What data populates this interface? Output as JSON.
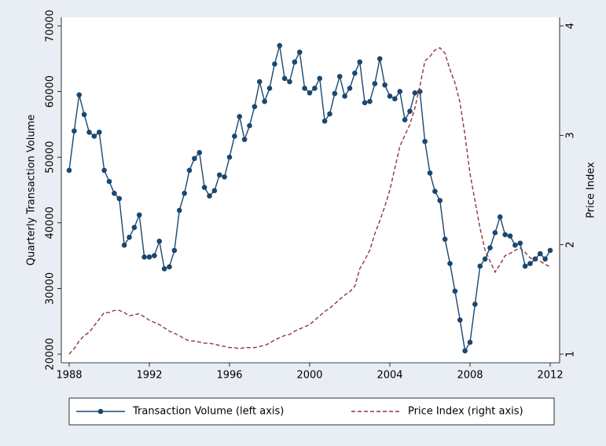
{
  "chart_data": {
    "type": "line",
    "x": [
      1988,
      1988.25,
      1988.5,
      1988.75,
      1989,
      1989.25,
      1989.5,
      1989.75,
      1990,
      1990.25,
      1990.5,
      1990.75,
      1991,
      1991.25,
      1991.5,
      1991.75,
      1992,
      1992.25,
      1992.5,
      1992.75,
      1993,
      1993.25,
      1993.5,
      1993.75,
      1994,
      1994.25,
      1994.5,
      1994.75,
      1995,
      1995.25,
      1995.5,
      1995.75,
      1996,
      1996.25,
      1996.5,
      1996.75,
      1997,
      1997.25,
      1997.5,
      1997.75,
      1998,
      1998.25,
      1998.5,
      1998.75,
      1999,
      1999.25,
      1999.5,
      1999.75,
      2000,
      2000.25,
      2000.5,
      2000.75,
      2001,
      2001.25,
      2001.5,
      2001.75,
      2002,
      2002.25,
      2002.5,
      2002.75,
      2003,
      2003.25,
      2003.5,
      2003.75,
      2004,
      2004.25,
      2004.5,
      2004.75,
      2005,
      2005.25,
      2005.5,
      2005.75,
      2006,
      2006.25,
      2006.5,
      2006.75,
      2007,
      2007.25,
      2007.5,
      2007.75,
      2008,
      2008.25,
      2008.5,
      2008.75,
      2009,
      2009.25,
      2009.5,
      2009.75,
      2010,
      2010.25,
      2010.5,
      2010.75,
      2011,
      2011.25,
      2011.5,
      2011.75,
      2012
    ],
    "series": [
      {
        "name": "Transaction Volume (left axis)",
        "color": "#1a476f",
        "style": "solid",
        "markers": true,
        "values": [
          48000,
          54000,
          59500,
          56500,
          53800,
          53200,
          53800,
          48000,
          46300,
          44500,
          43700,
          36600,
          37800,
          39300,
          41200,
          34800,
          34800,
          35000,
          37200,
          33000,
          33300,
          35800,
          41900,
          44500,
          48000,
          49800,
          50700,
          45400,
          44100,
          44900,
          47300,
          47000,
          50000,
          53200,
          56200,
          52700,
          54800,
          57700,
          61500,
          58500,
          60500,
          64200,
          67000,
          62000,
          61500,
          64500,
          66000,
          60500,
          59800,
          60500,
          62000,
          55500,
          56600,
          59700,
          62300,
          59300,
          60500,
          62800,
          64500,
          58300,
          58500,
          61200,
          65000,
          61000,
          59300,
          58900,
          60000,
          55700,
          57000,
          59800,
          60000,
          52400,
          47600,
          44800,
          43400,
          37500,
          33800,
          29600,
          25200,
          20500,
          21800,
          27600,
          33400,
          34500,
          36200,
          38500,
          40900,
          38200,
          38000,
          36600,
          36900,
          33400,
          33800,
          34500,
          35300,
          34500,
          35800
        ]
      },
      {
        "name": "Price Index (right axis)",
        "color": "#90353b",
        "style": "dashed",
        "markers": false,
        "axis": "y2",
        "values": [
          1.0,
          1.05,
          1.12,
          1.17,
          1.2,
          1.26,
          1.32,
          1.38,
          1.38,
          1.4,
          1.4,
          1.38,
          1.35,
          1.36,
          1.37,
          1.34,
          1.31,
          1.29,
          1.27,
          1.24,
          1.21,
          1.19,
          1.17,
          1.14,
          1.12,
          1.12,
          1.11,
          1.1,
          1.1,
          1.09,
          1.08,
          1.07,
          1.06,
          1.06,
          1.05,
          1.06,
          1.06,
          1.06,
          1.07,
          1.08,
          1.1,
          1.13,
          1.15,
          1.17,
          1.18,
          1.21,
          1.23,
          1.25,
          1.27,
          1.31,
          1.35,
          1.39,
          1.42,
          1.46,
          1.5,
          1.54,
          1.57,
          1.62,
          1.78,
          1.86,
          1.95,
          2.1,
          2.22,
          2.35,
          2.5,
          2.7,
          2.9,
          3.0,
          3.1,
          3.25,
          3.45,
          3.68,
          3.72,
          3.78,
          3.8,
          3.75,
          3.6,
          3.48,
          3.3,
          3.0,
          2.65,
          2.4,
          2.15,
          1.95,
          1.85,
          1.75,
          1.82,
          1.9,
          1.92,
          1.95,
          1.97,
          1.93,
          1.88,
          1.86,
          1.85,
          1.82,
          1.8
        ]
      }
    ],
    "y_label": "Quarterly Transaction Volume",
    "y2_label": "Price Index",
    "xlim": [
      1988,
      2012
    ],
    "xticks": [
      1988,
      1992,
      1996,
      2000,
      2004,
      2008,
      2012
    ],
    "ylim": [
      20000,
      70000
    ],
    "yticks": [
      20000,
      30000,
      40000,
      50000,
      60000,
      70000
    ],
    "y2lim": [
      1,
      4
    ],
    "y2ticks": [
      1,
      2,
      3,
      4
    ],
    "grid": false,
    "legend": "bottom"
  }
}
